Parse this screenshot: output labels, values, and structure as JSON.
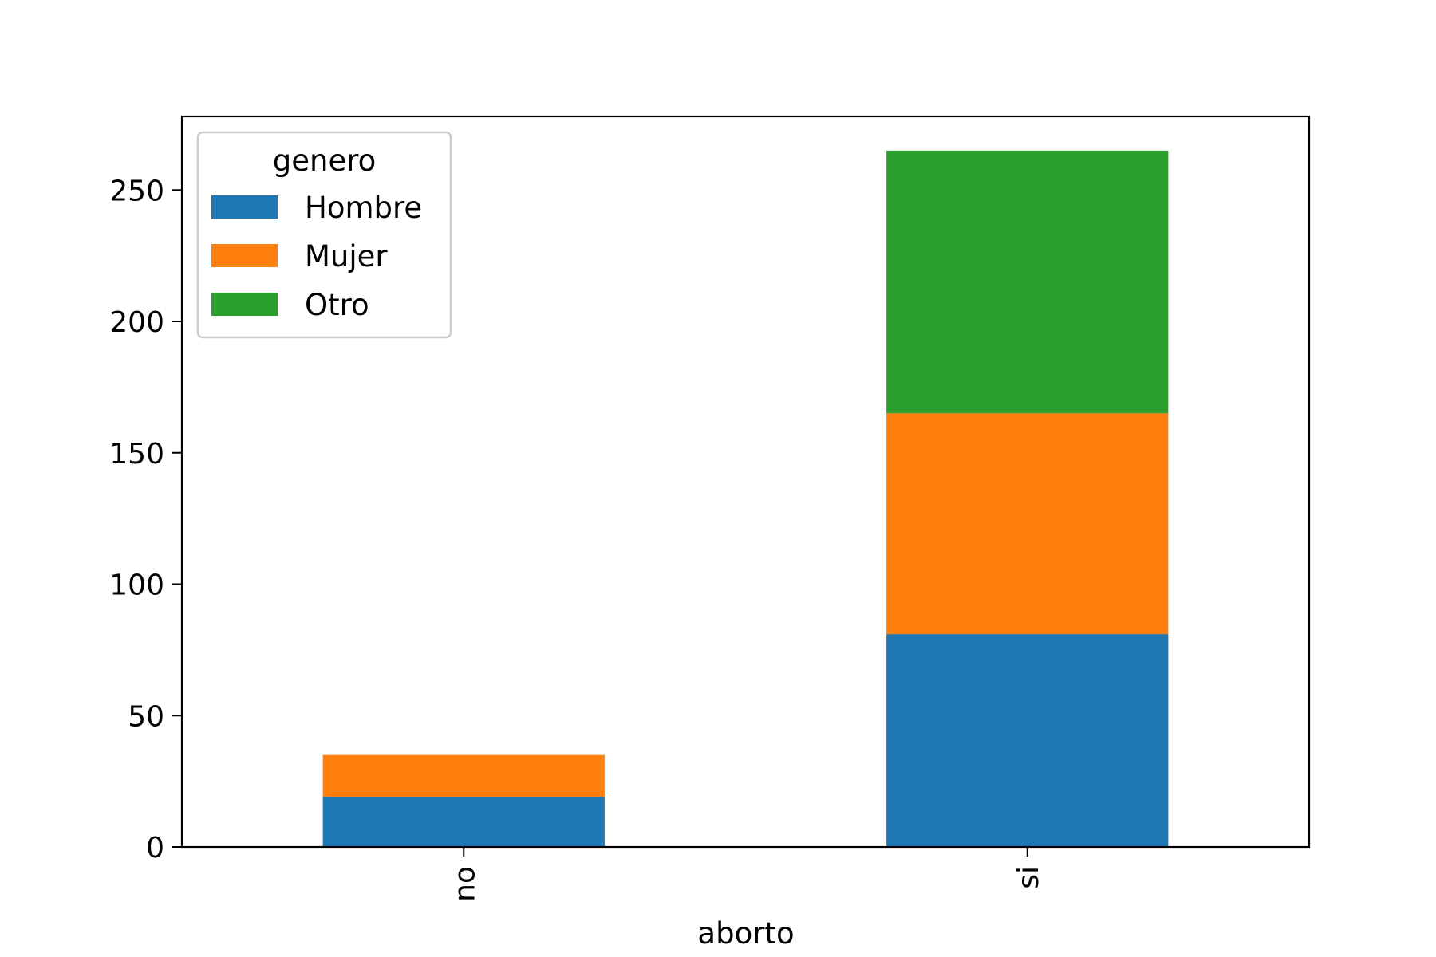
{
  "chart_data": {
    "type": "bar",
    "stacked": true,
    "categories": [
      "no",
      "si"
    ],
    "series": [
      {
        "name": "Hombre",
        "values": [
          19,
          81
        ],
        "color": "#1f77b4"
      },
      {
        "name": "Mujer",
        "values": [
          16,
          84
        ],
        "color": "#ff7f0e"
      },
      {
        "name": "Otro",
        "values": [
          0,
          100
        ],
        "color": "#2ca02c"
      }
    ],
    "title": "",
    "xlabel": "aborto",
    "ylabel": "",
    "ylim": [
      0,
      278
    ],
    "yticks": [
      0,
      50,
      100,
      150,
      200,
      250
    ],
    "legend": {
      "title": "genero",
      "placement": "upper-left"
    },
    "grid": false,
    "x_tick_rotation": "vertical"
  }
}
